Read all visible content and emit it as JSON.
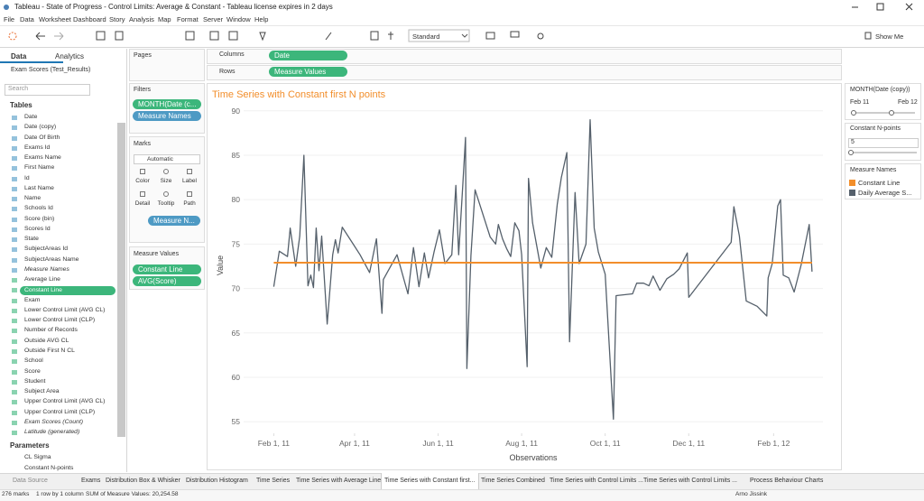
{
  "window": {
    "title": "Tableau - State of Progress - Control Limits: Average & Constant - Tableau license expires in 2 days"
  },
  "menu": [
    "File",
    "Data",
    "Worksheet",
    "Dashboard",
    "Story",
    "Analysis",
    "Map",
    "Format",
    "Server",
    "Window",
    "Help"
  ],
  "toolbar": {
    "view_size": "Standard",
    "show_me": "Show Me"
  },
  "data_pane": {
    "tabs": [
      "Data",
      "Analytics"
    ],
    "source": "Exam Scores (Test_Results)",
    "search": "Search",
    "tables": "Tables",
    "fields": [
      "Date",
      "Date (copy)",
      "Date Of Birth",
      "Exams Id",
      "Exams Name",
      "First Name",
      "Id",
      "Last Name",
      "Name",
      "Schools Id",
      "Score (bin)",
      "Scores Id",
      "State",
      "SubjectAreas Id",
      "SubjectAreas Name",
      "Measure Names",
      "Average Line",
      "Constant Line",
      "Exam",
      "Lower Control Limit (AVG CL)",
      "Lower Control Limit (CLP)",
      "Number of Records",
      "Outside AVG CL",
      "Outside First N CL",
      "School",
      "Score",
      "Student",
      "Subject Area",
      "Upper Control Limit (AVG CL)",
      "Upper Control Limit (CLP)",
      "Exam Scores (Count)",
      "Latitude (generated)"
    ],
    "parameters_heading": "Parameters",
    "parameters": [
      "CL Sigma",
      "Constant N-points"
    ]
  },
  "shelves": {
    "pages": "Pages",
    "filters": "Filters",
    "filter_pills": [
      "MONTH(Date (c...",
      "Measure Names"
    ],
    "marks": "Marks",
    "mark_type": "Automatic",
    "mark_buttons": [
      "Color",
      "Size",
      "Label",
      "Detail",
      "Tooltip",
      "Path"
    ],
    "mark_pill": "Measure N...",
    "measure_values": "Measure Values",
    "measure_value_pills": [
      "Constant Line",
      "AVG(Score)"
    ],
    "columns": "Columns",
    "columns_pill": "Date",
    "rows": "Rows",
    "rows_pill": "Measure Values"
  },
  "chart_data": {
    "type": "line",
    "title": "Time Series with Constant first N points",
    "x_label": "Observations",
    "y_label": "Value",
    "xlim": [
      "2011-01-10",
      "2012-03-08"
    ],
    "xticks": [
      {
        "value": "2011-02-01",
        "label": "Feb 1, 11"
      },
      {
        "value": "2011-04-01",
        "label": "Apr 1, 11"
      },
      {
        "value": "2011-06-01",
        "label": "Jun 1, 11"
      },
      {
        "value": "2011-08-01",
        "label": "Aug 1, 11"
      },
      {
        "value": "2011-10-01",
        "label": "Oct 1, 11"
      },
      {
        "value": "2011-12-01",
        "label": "Dec 1, 11"
      },
      {
        "value": "2012-02-01",
        "label": "Feb 1, 12"
      }
    ],
    "ylim": [
      53.7,
      91.5
    ],
    "yticks": [
      55,
      60,
      65,
      70,
      75,
      80,
      85,
      90
    ],
    "grid": true,
    "legend": "right",
    "series": [
      {
        "name": "Constant Line",
        "color": "#f28e2b",
        "x": [
          "2011-02-01",
          "2012-02-29"
        ],
        "values": [
          72.9,
          72.9
        ]
      },
      {
        "name": "Daily Average S...",
        "color": "#55606b",
        "x": [
          "2011-02-01",
          "2011-02-05",
          "2011-02-11",
          "2011-02-13",
          "2011-02-17",
          "2011-02-20",
          "2011-02-23",
          "2011-02-26",
          "2011-02-28",
          "2011-03-02",
          "2011-03-04",
          "2011-03-06",
          "2011-03-08",
          "2011-03-12",
          "2011-03-16",
          "2011-03-18",
          "2011-03-20",
          "2011-03-23",
          "2011-03-31",
          "2011-04-05",
          "2011-04-12",
          "2011-04-17",
          "2011-04-21",
          "2011-04-22",
          "2011-05-02",
          "2011-05-10",
          "2011-05-14",
          "2011-05-18",
          "2011-05-22",
          "2011-05-25",
          "2011-05-29",
          "2011-06-02",
          "2011-06-06",
          "2011-06-11",
          "2011-06-14",
          "2011-06-16",
          "2011-06-19",
          "2011-06-21",
          "2011-06-22",
          "2011-06-25",
          "2011-06-28",
          "2011-07-09",
          "2011-07-13",
          "2011-07-15",
          "2011-07-18",
          "2011-07-21",
          "2011-07-24",
          "2011-07-27",
          "2011-07-30",
          "2011-08-01",
          "2011-08-05",
          "2011-08-06",
          "2011-08-09",
          "2011-08-15",
          "2011-08-19",
          "2011-08-23",
          "2011-08-27",
          "2011-08-30",
          "2011-09-03",
          "2011-09-05",
          "2011-09-09",
          "2011-09-12",
          "2011-09-17",
          "2011-09-20",
          "2011-09-23",
          "2011-09-26",
          "2011-10-01",
          "2011-10-07",
          "2011-10-09",
          "2011-10-21",
          "2011-10-24",
          "2011-10-29",
          "2011-11-02",
          "2011-11-05",
          "2011-11-10",
          "2011-11-15",
          "2011-11-20",
          "2011-11-24",
          "2011-11-30",
          "2011-12-01",
          "2012-01-01",
          "2012-01-03",
          "2012-01-07",
          "2012-01-12",
          "2012-01-20",
          "2012-01-27",
          "2012-01-28",
          "2012-01-31",
          "2012-02-04",
          "2012-02-06",
          "2012-02-08",
          "2012-02-12",
          "2012-02-16",
          "2012-02-21",
          "2012-02-27",
          "2012-02-29"
        ],
        "values": [
          70.2,
          74.2,
          73.6,
          76.8,
          72.5,
          75.9,
          85.0,
          70.3,
          71.5,
          70.1,
          76.8,
          72.0,
          75.9,
          66.0,
          73.8,
          75.5,
          74.0,
          76.9,
          75.0,
          73.8,
          71.8,
          75.6,
          67.2,
          71.0,
          73.8,
          69.4,
          74.6,
          70.2,
          74.0,
          71.2,
          74.1,
          76.6,
          72.8,
          73.8,
          81.6,
          73.8,
          81.5,
          87.0,
          61.0,
          73.7,
          81.1,
          75.8,
          75.0,
          77.2,
          75.6,
          74.5,
          73.6,
          77.4,
          76.5,
          73.8,
          61.2,
          82.4,
          77.4,
          72.3,
          74.6,
          73.5,
          79.5,
          82.5,
          85.3,
          64.0,
          80.8,
          72.8,
          75.0,
          89.0,
          76.8,
          74.1,
          71.6,
          55.3,
          69.2,
          69.4,
          70.6,
          70.6,
          70.3,
          71.4,
          69.8,
          71.1,
          71.6,
          72.2,
          74.0,
          69.0,
          75.2,
          79.2,
          75.9,
          68.6,
          68.0,
          66.9,
          71.2,
          72.8,
          79.3,
          80.0,
          71.5,
          71.2,
          69.6,
          72.6,
          77.2,
          71.9
        ]
      }
    ]
  },
  "filter_card": {
    "title": "MONTH(Date (copy))",
    "start": "Feb 11",
    "end": "Feb 12"
  },
  "parameter_card": {
    "title": "Constant N-points",
    "value": 5
  },
  "legend": {
    "title": "Measure Names"
  },
  "sheet_tabs": [
    "Data Source",
    "Exams",
    "Distribution Box & Whisker",
    "Distribution Histogram",
    "Time Series",
    "Time Series with Average Line",
    "Time Series with Constant first...",
    "Time Series Combined",
    "Time Series with Control Limits ...",
    "Time Series with Control Limits ...",
    "Process Behaviour Charts"
  ],
  "status": [
    "276 marks",
    "1 row by 1 column",
    "SUM of Measure Values: 20,254.58",
    "Arno Jissink"
  ]
}
